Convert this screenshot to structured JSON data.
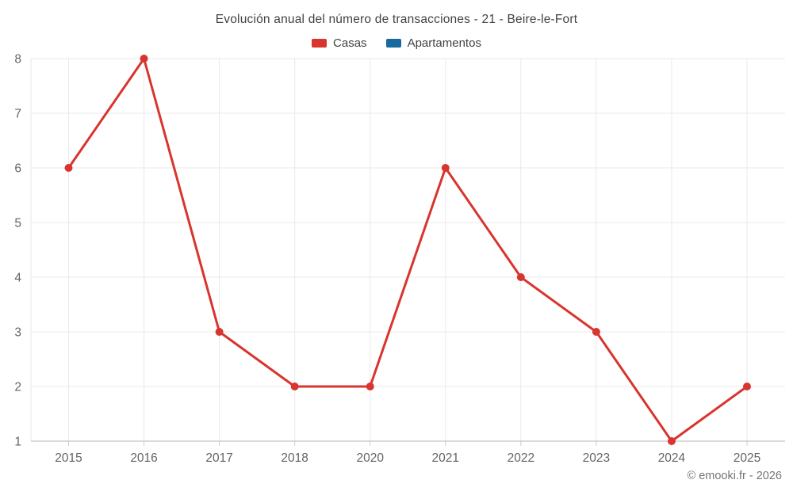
{
  "header": {
    "title": "Evolución anual del número de transacciones - 21 - Beire-le-Fort"
  },
  "chart_data": {
    "type": "line",
    "title": "Evolución anual del número de transacciones - 21 - Beire-le-Fort",
    "categories": [
      "2015",
      "2016",
      "2017",
      "2018",
      "2020",
      "2021",
      "2022",
      "2023",
      "2024",
      "2025"
    ],
    "series": [
      {
        "name": "Casas",
        "color": "#d8352f",
        "values": [
          6,
          8,
          3,
          2,
          2,
          6,
          4,
          3,
          1,
          2
        ]
      },
      {
        "name": "Apartamentos",
        "color": "#17699e",
        "values": []
      }
    ],
    "ylim": [
      1,
      8
    ],
    "y_ticks": [
      1,
      2,
      3,
      4,
      5,
      6,
      7,
      8
    ],
    "grid": true,
    "legend_position": "top",
    "point_radius": 5,
    "line_width": 3
  },
  "colors": {
    "casas": "#d8352f",
    "apartamentos": "#17699e",
    "gridline": "#e9e9e9",
    "axis_line": "#b7b7b7",
    "tick": "#cfcfcf"
  },
  "footer": {
    "copyright": "© emooki.fr - 2026"
  }
}
